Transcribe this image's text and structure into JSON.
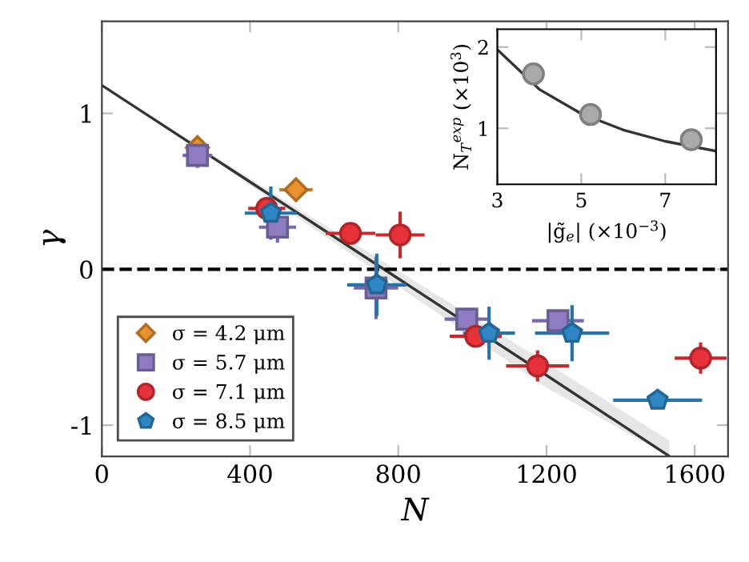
{
  "chart_data": [
    {
      "type": "scatter",
      "xlabel": "N",
      "ylabel": "γ",
      "xlim": [
        0,
        1690
      ],
      "ylim": [
        -1.2,
        1.59
      ],
      "xticks": [
        0,
        400,
        800,
        1200,
        1600
      ],
      "yticks": [
        -1,
        0,
        1
      ],
      "grid": false,
      "legend": "bottom left",
      "ref_lines": [
        {
          "axis": "y",
          "value": 0,
          "color": "#000000",
          "line_style": "dashed"
        }
      ],
      "series": [
        {
          "name": "σ = 4.2 μm",
          "color": "#e8912e",
          "marker": "diamond",
          "x": [
            258,
            524
          ],
          "values": [
            0.78,
            0.51
          ],
          "xerrors": [
            30,
            45
          ],
          "errors": [
            0.05,
            0.05
          ]
        },
        {
          "name": "σ = 5.7 μm",
          "color": "#8e7cc3",
          "marker": "square",
          "x": [
            258,
            474,
            740,
            985,
            1231
          ],
          "values": [
            0.73,
            0.27,
            -0.12,
            -0.32,
            -0.33
          ],
          "xerrors": [
            40,
            50,
            60,
            60,
            70
          ],
          "errors": [
            0.08,
            0.1,
            0.2,
            0.05,
            0.05
          ]
        },
        {
          "name": "σ = 7.1 μm",
          "color": "#e8323a",
          "marker": "circle",
          "x": [
            445,
            671,
            805,
            1009,
            1176,
            1616
          ],
          "values": [
            0.39,
            0.23,
            0.22,
            -0.43,
            -0.62,
            -0.57
          ],
          "xerrors": [
            50,
            67,
            66,
            70,
            85,
            70
          ],
          "errors": [
            0.05,
            0.05,
            0.15,
            0.05,
            0.1,
            0.1
          ]
        },
        {
          "name": "σ = 8.5 μm",
          "color": "#2f86c4",
          "x": [
            456,
            742,
            1045,
            1269,
            1500
          ],
          "values": [
            0.36,
            -0.1,
            -0.41,
            -0.41,
            -0.84
          ],
          "xerrors": [
            70,
            80,
            70,
            100,
            120
          ],
          "errors": [
            0.17,
            0.2,
            0.17,
            0.18,
            0.05
          ]
        },
        {
          "type": "line",
          "color": "#333333",
          "x": [
            0,
            400,
            800,
            1200,
            1532
          ],
          "values": [
            1.18,
            0.56,
            -0.06,
            -0.68,
            -1.2
          ],
          "lower": [
            1.18,
            0.54,
            -0.11,
            -0.76,
            -1.2
          ],
          "upper": [
            1.18,
            0.58,
            -0.01,
            -0.6,
            -1.1
          ]
        }
      ]
    },
    {
      "type": "scatter",
      "xlabel": "|g̃$_{e}$| (×10$^{−3}$)",
      "ylabel": "N$_{T}$$^{exp}$ (×10$^{3}$)",
      "xlim": [
        3,
        8.21
      ],
      "ylim": [
        0.31,
        2.22
      ],
      "xticks": [
        3,
        5,
        7
      ],
      "yticks": [
        1,
        2
      ],
      "grid": false,
      "series": [
        {
          "color": "#aaaaaa",
          "marker": "circle",
          "x": [
            3.86,
            5.22,
            7.62
          ],
          "values": [
            1.67,
            1.17,
            0.86
          ]
        },
        {
          "type": "line",
          "color": "#333333",
          "x": [
            3,
            4,
            5,
            6,
            7,
            8.21
          ],
          "values": [
            1.97,
            1.48,
            1.18,
            0.98,
            0.84,
            0.72
          ]
        }
      ]
    }
  ]
}
